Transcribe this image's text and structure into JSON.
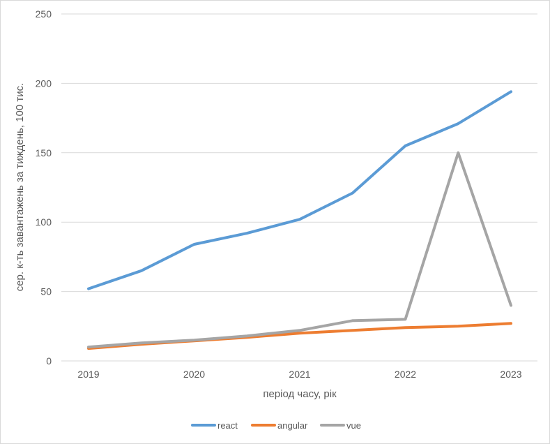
{
  "chart_data": {
    "type": "line",
    "title": "",
    "xlabel": "період часу, рік",
    "ylabel": "сер. к-ть завантажень за тиждень, 100 тис.",
    "x": [
      2019,
      2019.5,
      2020,
      2020.5,
      2021,
      2021.5,
      2022,
      2022.5,
      2023
    ],
    "x_ticks": [
      "2019",
      "2020",
      "2021",
      "2022",
      "2023"
    ],
    "ylim": [
      0,
      250
    ],
    "y_ticks": [
      "0",
      "50",
      "100",
      "150",
      "200",
      "250"
    ],
    "grid": true,
    "legend_position": "bottom",
    "series": [
      {
        "name": "react",
        "color": "#5b9bd5",
        "values": [
          52,
          65,
          84,
          92,
          102,
          121,
          155,
          171,
          194
        ]
      },
      {
        "name": "angular",
        "color": "#ed7d31",
        "values": [
          9,
          12,
          14.5,
          17,
          20,
          22,
          24,
          25,
          27
        ]
      },
      {
        "name": "vue",
        "color": "#a5a5a5",
        "values": [
          10,
          13,
          15,
          18,
          22,
          29,
          30,
          150,
          40
        ]
      }
    ]
  }
}
